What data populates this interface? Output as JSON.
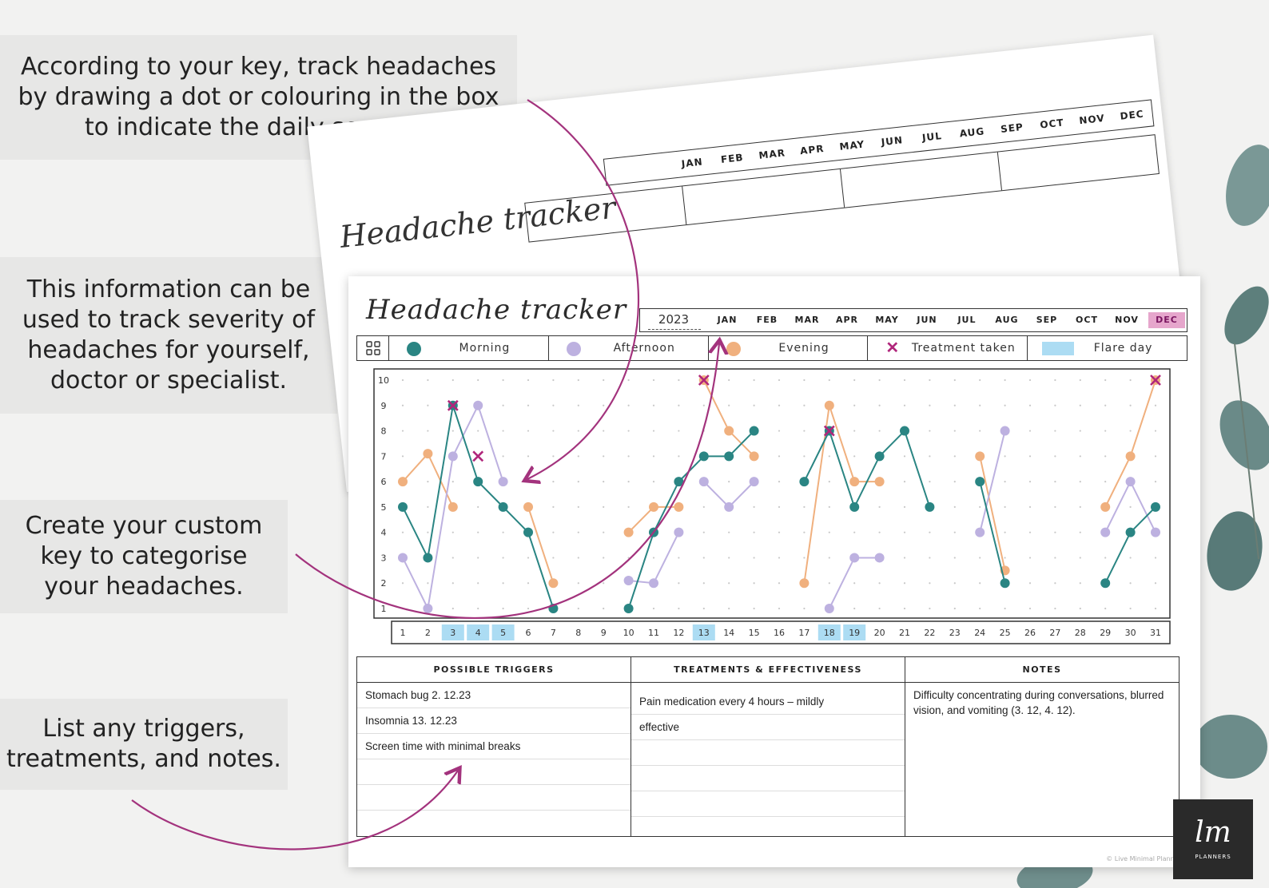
{
  "callouts": {
    "c1": "According to your key, track headaches\nby drawing a dot or colouring in the box\nto indicate the daily severity.",
    "c2": "This information can be\nused to track severity of\nheadaches for yourself,\ndoctor or specialist.",
    "c3": "Create your custom\nkey to categorise\nyour headaches.",
    "c4": "List any triggers,\ntreatments, and notes."
  },
  "back_sheet": {
    "title": "Headache tracker",
    "months": [
      "JAN",
      "FEB",
      "MAR",
      "APR",
      "MAY",
      "JUN",
      "JUL",
      "AUG",
      "SEP",
      "OCT",
      "NOV",
      "DEC"
    ]
  },
  "tracker": {
    "title": "Headache tracker",
    "year": "2023",
    "months": [
      "JAN",
      "FEB",
      "MAR",
      "APR",
      "MAY",
      "JUN",
      "JUL",
      "AUG",
      "SEP",
      "OCT",
      "NOV",
      "DEC"
    ],
    "selected_month": "DEC",
    "legend": {
      "icon": "grid-icon",
      "morning": "Morning",
      "afternoon": "Afternoon",
      "evening": "Evening",
      "treatment": "Treatment taken",
      "flare": "Flare day"
    },
    "colors": {
      "morning": "#2a8583",
      "afternoon": "#bdb1e0",
      "evening": "#f0b07e",
      "treatment": "#b0267b",
      "flare": "#acdcf3",
      "accent": "#a3337d"
    },
    "triggers_header": "POSSIBLE TRIGGERS",
    "triggers": [
      "Stomach bug 2. 12.23",
      "Insomnia  13. 12.23",
      "Screen time with minimal breaks",
      "",
      "",
      ""
    ],
    "treatments_header": "TREATMENTS & EFFECTIVENESS",
    "treatments": [
      "Pain medication every 4 hours –  mildly",
      "effective",
      "",
      "",
      "",
      ""
    ],
    "notes_header": "NOTES",
    "notes": "Difficulty concentrating during conversations, blurred vision, and vomiting (3. 12, 4. 12).",
    "copyright": "© Live Minimal Planners"
  },
  "chart_data": {
    "type": "line",
    "x": [
      1,
      2,
      3,
      4,
      5,
      6,
      7,
      8,
      9,
      10,
      11,
      12,
      13,
      14,
      15,
      16,
      17,
      18,
      19,
      20,
      21,
      22,
      23,
      24,
      25,
      26,
      27,
      28,
      29,
      30,
      31
    ],
    "y_ticks": [
      1,
      2,
      3,
      4,
      5,
      6,
      7,
      8,
      9,
      10
    ],
    "ylim": [
      1,
      10
    ],
    "flare_days": [
      3,
      4,
      5,
      13,
      18,
      19
    ],
    "series": [
      {
        "name": "Morning",
        "segments": [
          [
            [
              1,
              5
            ],
            [
              2,
              3
            ],
            [
              3,
              9
            ],
            [
              4,
              6
            ],
            [
              5,
              5
            ],
            [
              6,
              4
            ],
            [
              7,
              1
            ]
          ],
          [
            [
              10,
              1
            ],
            [
              11,
              4
            ],
            [
              12,
              6
            ],
            [
              13,
              7
            ],
            [
              14,
              7
            ],
            [
              15,
              8
            ]
          ],
          [
            [
              17,
              6
            ],
            [
              18,
              8
            ],
            [
              19,
              5
            ],
            [
              20,
              7
            ],
            [
              21,
              8
            ],
            [
              22,
              5
            ]
          ],
          [
            [
              24,
              6
            ],
            [
              25,
              2
            ]
          ],
          [
            [
              29,
              2
            ],
            [
              30,
              4
            ],
            [
              31,
              5
            ]
          ]
        ]
      },
      {
        "name": "Afternoon",
        "segments": [
          [
            [
              1,
              3
            ],
            [
              2,
              1
            ],
            [
              3,
              7
            ],
            [
              4,
              9
            ],
            [
              5,
              6
            ]
          ],
          [
            [
              10,
              2.1
            ],
            [
              11,
              2
            ],
            [
              12,
              4
            ]
          ],
          [
            [
              13,
              6
            ],
            [
              14,
              5
            ],
            [
              15,
              6
            ]
          ],
          [
            [
              18,
              1
            ],
            [
              19,
              3
            ],
            [
              20,
              3
            ]
          ],
          [
            [
              24,
              4
            ],
            [
              25,
              8
            ]
          ],
          [
            [
              29,
              4
            ],
            [
              30,
              6
            ],
            [
              31,
              4
            ]
          ]
        ]
      },
      {
        "name": "Evening",
        "segments": [
          [
            [
              1,
              6
            ],
            [
              2,
              7.1
            ],
            [
              3,
              5
            ]
          ],
          [
            [
              6,
              5
            ],
            [
              7,
              2
            ]
          ],
          [
            [
              10,
              4
            ],
            [
              11,
              5
            ],
            [
              12,
              5
            ]
          ],
          [
            [
              13,
              10
            ],
            [
              14,
              8
            ],
            [
              15,
              7
            ]
          ],
          [
            [
              17,
              2
            ],
            [
              18,
              9
            ],
            [
              19,
              6
            ],
            [
              20,
              6
            ]
          ],
          [
            [
              24,
              7
            ],
            [
              25,
              2.5
            ]
          ],
          [
            [
              29,
              5
            ],
            [
              30,
              7
            ],
            [
              31,
              10
            ]
          ]
        ]
      }
    ],
    "treatment_points": [
      [
        3,
        9
      ],
      [
        4,
        7
      ],
      [
        13,
        10
      ],
      [
        18,
        8
      ],
      [
        31,
        10
      ]
    ]
  },
  "logo": {
    "mark": "lm",
    "word": "PLANNERS"
  }
}
